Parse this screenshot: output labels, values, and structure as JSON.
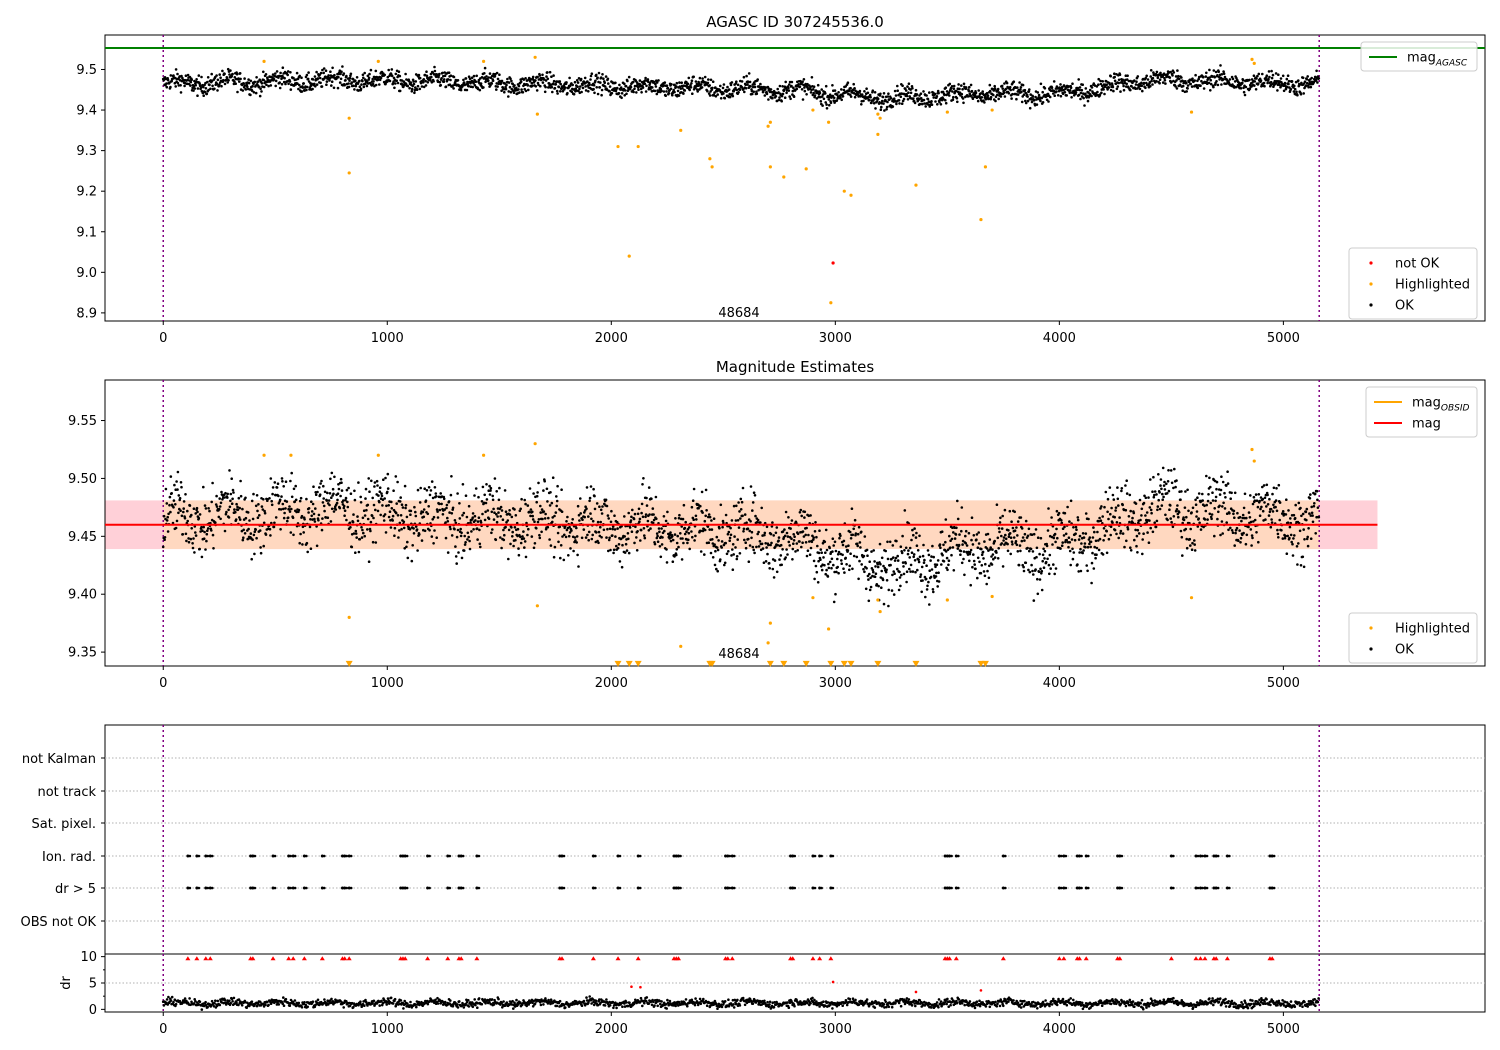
{
  "chart_data": [
    {
      "type": "scatter",
      "title": "AGASC ID 307245536.0",
      "xlim": [
        -260,
        5900
      ],
      "ylim": [
        8.88,
        9.585
      ],
      "xticks": [
        0,
        1000,
        2000,
        3000,
        4000,
        5000
      ],
      "yticks": [
        8.9,
        9.0,
        9.1,
        9.2,
        9.3,
        9.4,
        9.5
      ],
      "ytick_labels": [
        "8.9",
        "9.0",
        "9.1",
        "9.2",
        "9.3",
        "9.4",
        "9.5"
      ],
      "annotation": "48684",
      "annotation_pos": [
        2570,
        8.9
      ],
      "hlines": [
        {
          "name": "mag_AGASC",
          "y": 9.553,
          "color": "#008000",
          "x_start": -260,
          "x_end": 5900
        }
      ],
      "vlines": [
        {
          "x": 0,
          "color": "#800080"
        },
        {
          "x": 5160,
          "color": "#800080"
        }
      ],
      "legend_top": {
        "position": "top-right",
        "entries": [
          {
            "label": "mag",
            "sub": "AGASC",
            "color": "#008000",
            "marker": "line"
          }
        ]
      },
      "legend_bottom": {
        "position": "bottom-right",
        "entries": [
          {
            "label": "not OK",
            "color": "#ff0000",
            "marker": "dot"
          },
          {
            "label": "Highlighted",
            "color": "#ffa500",
            "marker": "dot"
          },
          {
            "label": "OK",
            "color": "#000000",
            "marker": "dot"
          }
        ]
      },
      "series": [
        {
          "name": "OK",
          "color": "#000000",
          "band": {
            "x_range": [
              0,
              5160
            ],
            "segments": [
              [
                0,
                9.465
              ],
              [
                400,
                9.47
              ],
              [
                800,
                9.475
              ],
              [
                1200,
                9.47
              ],
              [
                1600,
                9.465
              ],
              [
                2000,
                9.46
              ],
              [
                2400,
                9.455
              ],
              [
                2800,
                9.45
              ],
              [
                3200,
                9.43
              ],
              [
                3600,
                9.44
              ],
              [
                4000,
                9.44
              ],
              [
                4400,
                9.475
              ],
              [
                4800,
                9.47
              ],
              [
                5160,
                9.465
              ]
            ],
            "spread": 0.025
          }
        },
        {
          "name": "Highlighted",
          "color": "#ffa500",
          "points": [
            [
              450,
              9.52
            ],
            [
              830,
              9.38
            ],
            [
              830,
              9.245
            ],
            [
              960,
              9.52
            ],
            [
              1430,
              9.52
            ],
            [
              1660,
              9.53
            ],
            [
              1670,
              9.39
            ],
            [
              2030,
              9.31
            ],
            [
              2080,
              9.04
            ],
            [
              2120,
              9.31
            ],
            [
              2310,
              9.35
            ],
            [
              2440,
              9.28
            ],
            [
              2450,
              9.26
            ],
            [
              2700,
              9.36
            ],
            [
              2710,
              9.37
            ],
            [
              2710,
              9.26
            ],
            [
              2770,
              9.235
            ],
            [
              2870,
              9.255
            ],
            [
              2900,
              9.4
            ],
            [
              2970,
              9.37
            ],
            [
              2980,
              8.925
            ],
            [
              3040,
              9.2
            ],
            [
              3070,
              9.19
            ],
            [
              3190,
              9.39
            ],
            [
              3200,
              9.38
            ],
            [
              3190,
              9.34
            ],
            [
              3360,
              9.215
            ],
            [
              3500,
              9.395
            ],
            [
              3650,
              9.13
            ],
            [
              3670,
              9.26
            ],
            [
              3700,
              9.4
            ],
            [
              4590,
              9.395
            ],
            [
              4860,
              9.525
            ],
            [
              4870,
              9.515
            ]
          ]
        },
        {
          "name": "not OK",
          "color": "#ff0000",
          "points": [
            [
              2990,
              9.023
            ]
          ]
        }
      ]
    },
    {
      "type": "scatter",
      "title": "Magnitude Estimates",
      "xlim": [
        -260,
        5900
      ],
      "ylim": [
        9.338,
        9.585
      ],
      "xticks": [
        0,
        1000,
        2000,
        3000,
        4000,
        5000
      ],
      "yticks": [
        9.35,
        9.4,
        9.45,
        9.5,
        9.55
      ],
      "ytick_labels": [
        "9.35",
        "9.40",
        "9.45",
        "9.50",
        "9.55"
      ],
      "annotation": "48684",
      "annotation_pos": [
        2570,
        9.35
      ],
      "hlines": [
        {
          "name": "mag",
          "y": 9.46,
          "color": "#ff0000",
          "x_start": -260,
          "x_end": 5420
        }
      ],
      "bands": [
        {
          "y_range": [
            9.439,
            9.481
          ],
          "x_range": [
            -260,
            5420
          ],
          "color": "#ffd0d8"
        },
        {
          "y_range": [
            9.439,
            9.481
          ],
          "x_range": [
            0,
            5160
          ],
          "color": "#ffd8c0"
        }
      ],
      "vlines": [
        {
          "x": 0,
          "color": "#800080"
        },
        {
          "x": 5160,
          "color": "#800080"
        }
      ],
      "legend_top": {
        "position": "top-right",
        "entries": [
          {
            "label": "mag",
            "sub": "OBSID",
            "color": "#ffa500",
            "marker": "line"
          },
          {
            "label": "mag",
            "color": "#ff0000",
            "marker": "line"
          }
        ]
      },
      "legend_bottom": {
        "position": "bottom-right",
        "entries": [
          {
            "label": "Highlighted",
            "color": "#ffa500",
            "marker": "dot"
          },
          {
            "label": "OK",
            "color": "#000000",
            "marker": "dot"
          }
        ]
      },
      "series": [
        {
          "name": "OK",
          "color": "#000000",
          "band": {
            "x_range": [
              0,
              5160
            ],
            "segments": [
              [
                0,
                9.465
              ],
              [
                400,
                9.47
              ],
              [
                800,
                9.475
              ],
              [
                1200,
                9.465
              ],
              [
                1600,
                9.465
              ],
              [
                2000,
                9.46
              ],
              [
                2400,
                9.455
              ],
              [
                2800,
                9.45
              ],
              [
                3200,
                9.425
              ],
              [
                3600,
                9.44
              ],
              [
                4000,
                9.44
              ],
              [
                4400,
                9.475
              ],
              [
                4800,
                9.47
              ],
              [
                5160,
                9.465
              ]
            ],
            "spread": 0.03
          }
        },
        {
          "name": "Highlighted",
          "color": "#ffa500",
          "points": [
            [
              450,
              9.52
            ],
            [
              570,
              9.52
            ],
            [
              830,
              9.38
            ],
            [
              960,
              9.52
            ],
            [
              1430,
              9.52
            ],
            [
              1660,
              9.53
            ],
            [
              1670,
              9.39
            ],
            [
              2310,
              9.355
            ],
            [
              2700,
              9.358
            ],
            [
              2710,
              9.375
            ],
            [
              2900,
              9.397
            ],
            [
              2970,
              9.37
            ],
            [
              3190,
              9.395
            ],
            [
              3200,
              9.385
            ],
            [
              3500,
              9.395
            ],
            [
              3700,
              9.398
            ],
            [
              4590,
              9.397
            ],
            [
              4860,
              9.525
            ],
            [
              4870,
              9.515
            ]
          ]
        },
        {
          "name": "lower limits",
          "color": "#ffa500",
          "marker": "triangle-down",
          "points": [
            [
              830,
              9.339
            ],
            [
              2030,
              9.339
            ],
            [
              2080,
              9.339
            ],
            [
              2120,
              9.339
            ],
            [
              2440,
              9.339
            ],
            [
              2450,
              9.339
            ],
            [
              2710,
              9.339
            ],
            [
              2770,
              9.339
            ],
            [
              2870,
              9.339
            ],
            [
              2980,
              9.339
            ],
            [
              3040,
              9.339
            ],
            [
              3070,
              9.339
            ],
            [
              3190,
              9.339
            ],
            [
              3360,
              9.339
            ],
            [
              3650,
              9.339
            ],
            [
              3670,
              9.339
            ]
          ]
        }
      ]
    },
    {
      "type": "scatter",
      "xlim": [
        -260,
        5900
      ],
      "ylim": [
        0,
        7
      ],
      "categories": [
        "not Kalman",
        "not track",
        "Sat. pixel.",
        "Ion. rad.",
        "dr > 5",
        "OBS not OK"
      ],
      "vlines": [
        {
          "x": 0,
          "color": "#800080"
        },
        {
          "x": 5160,
          "color": "#800080"
        }
      ],
      "flag_times": [
        110,
        150,
        190,
        210,
        390,
        400,
        490,
        560,
        580,
        630,
        710,
        800,
        810,
        830,
        1060,
        1070,
        1080,
        1180,
        1270,
        1320,
        1330,
        1400,
        1770,
        1780,
        1920,
        2030,
        2120,
        2280,
        2290,
        2300,
        2510,
        2520,
        2540,
        2800,
        2810,
        2900,
        2930,
        2980,
        3490,
        3500,
        3510,
        3540,
        3750,
        4000,
        4020,
        4080,
        4090,
        4120,
        4260,
        4270,
        4500,
        4610,
        4630,
        4650,
        4690,
        4700,
        4750,
        4940,
        4950
      ],
      "flag_rows": [
        "Ion. rad.",
        "dr > 5"
      ]
    },
    {
      "type": "scatter",
      "xlim": [
        -260,
        5900
      ],
      "ylim": [
        -0.5,
        10.5
      ],
      "xticks": [
        0,
        1000,
        2000,
        3000,
        4000,
        5000
      ],
      "yticks": [
        0,
        5,
        10
      ],
      "ytick_labels": [
        "0",
        "5",
        "10"
      ],
      "ylabel": "dr",
      "vlines": [
        {
          "x": 0,
          "color": "#800080"
        },
        {
          "x": 5160,
          "color": "#800080"
        }
      ],
      "series": [
        {
          "name": "dr",
          "color": "#000000",
          "band": {
            "x_range": [
              0,
              5160
            ],
            "segments": [
              [
                0,
                1.2
              ],
              [
                5160,
                1.2
              ]
            ],
            "spread": 0.8
          }
        },
        {
          "name": "dr clipped",
          "color": "#ff0000",
          "marker": "triangle-up",
          "y": 9.7
        },
        {
          "name": "dr outliers",
          "color": "#ff0000",
          "points": [
            [
              2090,
              4.3
            ],
            [
              2130,
              4.2
            ],
            [
              2990,
              5.2
            ],
            [
              3360,
              3.3
            ],
            [
              3650,
              3.6
            ]
          ]
        }
      ]
    }
  ]
}
